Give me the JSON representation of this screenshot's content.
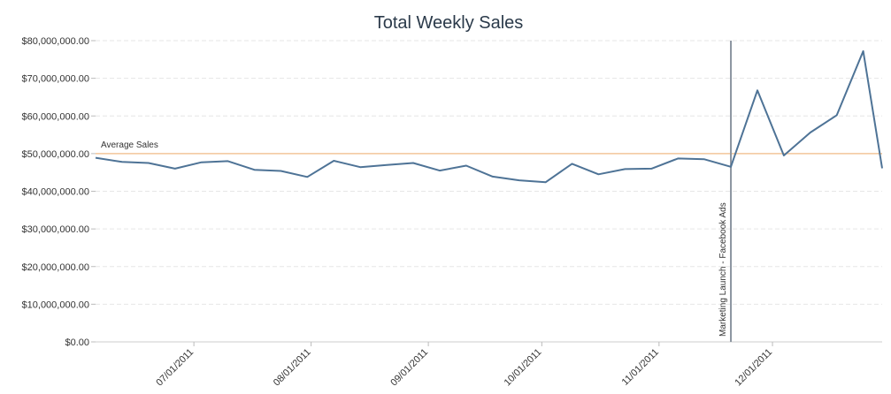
{
  "chart_data": {
    "type": "line",
    "title": "Total Weekly Sales",
    "xlabel": "",
    "ylabel": "",
    "ylim": [
      0,
      80000000
    ],
    "y_ticks": [
      0,
      10000000,
      20000000,
      30000000,
      40000000,
      50000000,
      60000000,
      70000000,
      80000000
    ],
    "y_tick_labels": [
      "$0.00",
      "$10,000,000.00",
      "$20,000,000.00",
      "$30,000,000.00",
      "$40,000,000.00",
      "$50,000,000.00",
      "$60,000,000.00",
      "$70,000,000.00",
      "$80,000,000.00"
    ],
    "xlim": [
      "2011-06-05",
      "2011-12-30"
    ],
    "x_ticks": [
      "2011-07-01",
      "2011-08-01",
      "2011-09-01",
      "2011-10-01",
      "2011-11-01",
      "2011-12-01"
    ],
    "x_tick_labels": [
      "07/01/2011",
      "08/01/2011",
      "09/01/2011",
      "10/01/2011",
      "11/01/2011",
      "12/01/2011"
    ],
    "grid": true,
    "line_color": "#4e7396",
    "series": [
      {
        "x": [
          "2011-06-05",
          "2011-06-12",
          "2011-06-19",
          "2011-06-26",
          "2011-07-03",
          "2011-07-10",
          "2011-07-17",
          "2011-07-24",
          "2011-07-31",
          "2011-08-07",
          "2011-08-14",
          "2011-08-21",
          "2011-08-28",
          "2011-09-04",
          "2011-09-11",
          "2011-09-18",
          "2011-09-25",
          "2011-10-02",
          "2011-10-09",
          "2011-10-16",
          "2011-10-23",
          "2011-10-30",
          "2011-11-06",
          "2011-11-13",
          "2011-11-20",
          "2011-11-27",
          "2011-12-04",
          "2011-12-11",
          "2011-12-18",
          "2011-12-25",
          "2011-12-30"
        ],
        "values": [
          48900000,
          47800000,
          47500000,
          46000000,
          47700000,
          48000000,
          45700000,
          45400000,
          43800000,
          48100000,
          46400000,
          47000000,
          47500000,
          45500000,
          46800000,
          43900000,
          42900000,
          42400000,
          47300000,
          44500000,
          45900000,
          46000000,
          48700000,
          48500000,
          46500000,
          66800000,
          49500000,
          55600000,
          60200000,
          77200000,
          46100000
        ]
      }
    ],
    "reference_lines": [
      {
        "orientation": "horizontal",
        "value": 50000000,
        "label": "Average Sales",
        "color": "#f3c69a"
      },
      {
        "orientation": "vertical",
        "value": "2011-11-20",
        "label": "Marketing Launch - Facebook Ads",
        "color": "#8c95a0"
      }
    ]
  }
}
